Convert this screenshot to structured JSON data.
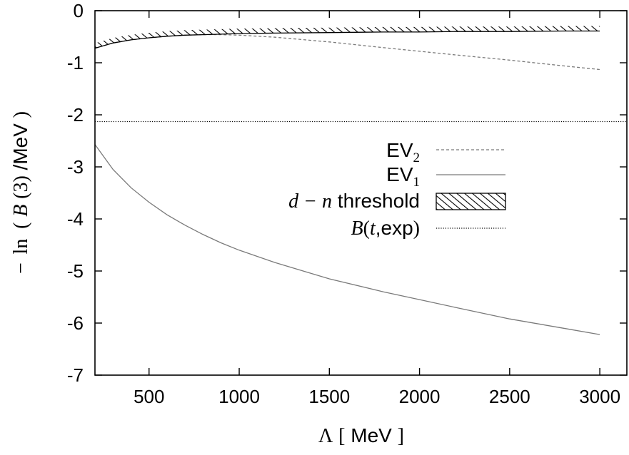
{
  "chart_data": {
    "type": "line",
    "xlabel": {
      "symbol": "Λ",
      "open": "[",
      "unit": "MeV",
      "close": "]"
    },
    "ylabel": {
      "minus": "−",
      "fn": "ln",
      "open": "(",
      "var": "B",
      "arg": "(3)",
      "unit": "/MeV",
      "close": ")"
    },
    "xlim": [
      200,
      3150
    ],
    "ylim": [
      -7,
      0
    ],
    "xticks": [
      500,
      1000,
      1500,
      2000,
      2500,
      3000
    ],
    "yticks": [
      0,
      -1,
      -2,
      -3,
      -4,
      -5,
      -6,
      -7
    ],
    "legend": {
      "placement": "center-right",
      "entries": [
        {
          "key": "ev2",
          "base": "EV",
          "sub": "2"
        },
        {
          "key": "ev1",
          "base": "EV",
          "sub": "1"
        },
        {
          "key": "threshold",
          "math": "d − n",
          "text": " threshold"
        },
        {
          "key": "bt",
          "math1": "B",
          "open": "(",
          "math2": "t",
          "text": ",exp",
          "close": ")"
        }
      ]
    },
    "series": [
      {
        "key": "ev2",
        "style": "dashed",
        "color": "#7a7a7a",
        "x": [
          200,
          300,
          400,
          500,
          600,
          700,
          800,
          900,
          1000,
          1200,
          1500,
          1800,
          2000,
          2200,
          2500,
          2800,
          3000
        ],
        "y": [
          -0.72,
          -0.62,
          -0.56,
          -0.52,
          -0.49,
          -0.47,
          -0.46,
          -0.46,
          -0.47,
          -0.51,
          -0.6,
          -0.71,
          -0.78,
          -0.85,
          -0.95,
          -1.06,
          -1.13
        ]
      },
      {
        "key": "ev1",
        "style": "solid",
        "color": "#7a7a7a",
        "x": [
          200,
          300,
          400,
          500,
          600,
          700,
          800,
          900,
          1000,
          1200,
          1500,
          1800,
          2000,
          2200,
          2500,
          2800,
          3000
        ],
        "y": [
          -2.57,
          -3.05,
          -3.4,
          -3.68,
          -3.92,
          -4.12,
          -4.3,
          -4.46,
          -4.6,
          -4.84,
          -5.15,
          -5.4,
          -5.55,
          -5.7,
          -5.92,
          -6.1,
          -6.22
        ]
      },
      {
        "key": "threshold",
        "style": "hatched",
        "color": "#000000",
        "x": [
          200,
          300,
          400,
          500,
          600,
          700,
          800,
          900,
          1000,
          1200,
          1500,
          1800,
          2000,
          2200,
          2500,
          2800,
          3000
        ],
        "y": [
          -0.72,
          -0.62,
          -0.56,
          -0.52,
          -0.49,
          -0.47,
          -0.46,
          -0.45,
          -0.44,
          -0.43,
          -0.42,
          -0.41,
          -0.41,
          -0.4,
          -0.4,
          -0.39,
          -0.39
        ]
      },
      {
        "key": "bt",
        "style": "dotted",
        "color": "#000000",
        "x": [
          200,
          3150
        ],
        "y": [
          -2.13,
          -2.13
        ]
      }
    ]
  }
}
